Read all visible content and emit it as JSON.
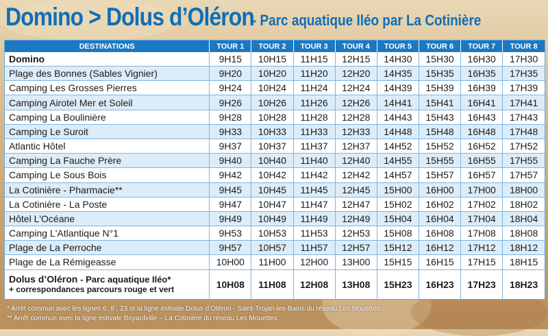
{
  "title": {
    "main": "Domino > Dolus d’Oléron",
    "sub": "- Parc aquatique Iléo par La Cotinière"
  },
  "table": {
    "headers": [
      "DESTINATIONS",
      "TOUR 1",
      "TOUR 2",
      "TOUR 3",
      "TOUR 4",
      "TOUR 5",
      "TOUR 6",
      "TOUR 7",
      "TOUR 8"
    ],
    "rows": [
      {
        "dest": "Domino",
        "times": [
          "9H15",
          "10H15",
          "11H15",
          "12H15",
          "14H30",
          "15H30",
          "16H30",
          "17H30"
        ]
      },
      {
        "dest": "Plage des Bonnes (Sables Vignier)",
        "times": [
          "9H20",
          "10H20",
          "11H20",
          "12H20",
          "14H35",
          "15H35",
          "16H35",
          "17H35"
        ]
      },
      {
        "dest": "Camping Les Grosses Pierres",
        "times": [
          "9H24",
          "10H24",
          "11H24",
          "12H24",
          "14H39",
          "15H39",
          "16H39",
          "17H39"
        ]
      },
      {
        "dest": "Camping Airotel Mer et Soleil",
        "times": [
          "9H26",
          "10H26",
          "11H26",
          "12H26",
          "14H41",
          "15H41",
          "16H41",
          "17H41"
        ]
      },
      {
        "dest": "Camping La Boulinière",
        "times": [
          "9H28",
          "10H28",
          "11H28",
          "12H28",
          "14H43",
          "15H43",
          "16H43",
          "17H43"
        ]
      },
      {
        "dest": "Camping Le Suroit",
        "times": [
          "9H33",
          "10H33",
          "11H33",
          "12H33",
          "14H48",
          "15H48",
          "16H48",
          "17H48"
        ]
      },
      {
        "dest": "Atlantic Hôtel",
        "times": [
          "9H37",
          "10H37",
          "11H37",
          "12H37",
          "14H52",
          "15H52",
          "16H52",
          "17H52"
        ]
      },
      {
        "dest": "Camping La Fauche Prère",
        "times": [
          "9H40",
          "10H40",
          "11H40",
          "12H40",
          "14H55",
          "15H55",
          "16H55",
          "17H55"
        ]
      },
      {
        "dest": "Camping Le Sous Bois",
        "times": [
          "9H42",
          "10H42",
          "11H42",
          "12H42",
          "14H57",
          "15H57",
          "16H57",
          "17H57"
        ]
      },
      {
        "dest": "La Cotinière - Pharmacie**",
        "times": [
          "9H45",
          "10H45",
          "11H45",
          "12H45",
          "15H00",
          "16H00",
          "17H00",
          "18H00"
        ]
      },
      {
        "dest": "La Cotinière - La Poste",
        "times": [
          "9H47",
          "10H47",
          "11H47",
          "12H47",
          "15H02",
          "16H02",
          "17H02",
          "18H02"
        ]
      },
      {
        "dest": "Hôtel L'Océane",
        "times": [
          "9H49",
          "10H49",
          "11H49",
          "12H49",
          "15H04",
          "16H04",
          "17H04",
          "18H04"
        ]
      },
      {
        "dest": "Camping L'Atlantique N°1",
        "times": [
          "9H53",
          "10H53",
          "11H53",
          "12H53",
          "15H08",
          "16H08",
          "17H08",
          "18H08"
        ]
      },
      {
        "dest": "Plage de La Perroche",
        "times": [
          "9H57",
          "10H57",
          "11H57",
          "12H57",
          "15H12",
          "16H12",
          "17H12",
          "18H12"
        ]
      },
      {
        "dest": "Plage de La Rémigeasse",
        "times": [
          "10H00",
          "11H00",
          "12H00",
          "13H00",
          "15H15",
          "16H15",
          "17H15",
          "18H15"
        ]
      }
    ],
    "final": {
      "name": "Dolus d’Oléron",
      "sub": "- Parc aquatique Iléo*",
      "line2": "+ correspondances parcours rouge et vert",
      "times": [
        "10H08",
        "11H08",
        "12H08",
        "13H08",
        "15H23",
        "16H23",
        "17H23",
        "18H23"
      ]
    }
  },
  "notes": [
    "* Arrêt commun avec les lignes 6, 8 , 23 et la ligne estivale Dolus d’Oléron - Saint-Trojan-les-Bains du réseau Les Mouettes.",
    "** Arrêt commun avec la ligne estivale Boyardville – La Cotinière du réseau Les Mouettes."
  ],
  "colors": {
    "title_blue": "#0e6fb8",
    "header_blue": "#1b78c2",
    "row_alt": "#dcecf8"
  }
}
